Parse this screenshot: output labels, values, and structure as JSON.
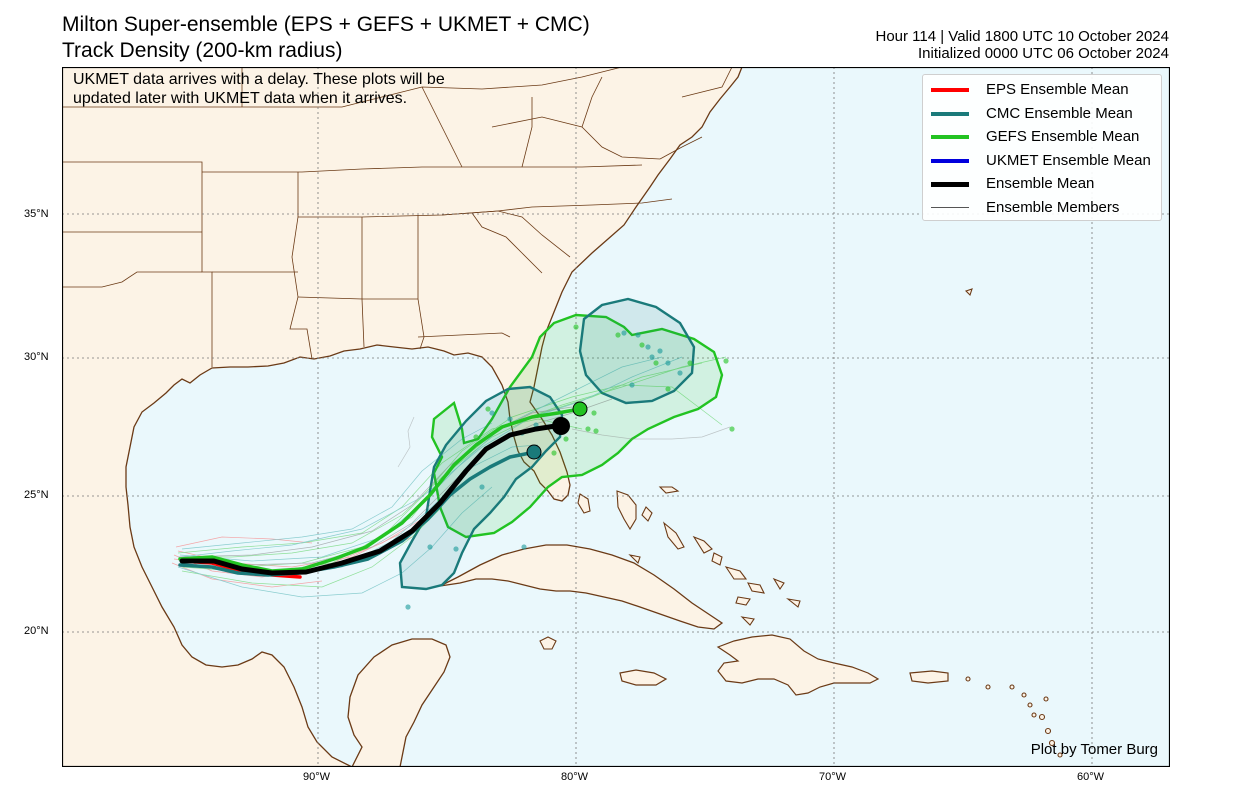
{
  "header": {
    "title_line1": "Milton Super-ensemble (EPS + GEFS + UKMET + CMC)",
    "title_line2": "Track Density (200-km radius)",
    "valid_line": "Hour 114 | Valid 1800 UTC 10 October 2024",
    "init_line": "Initialized 0000 UTC 06 October 2024"
  },
  "note": {
    "line1": "UKMET data arrives with a delay. These plots will be",
    "line2": "updated later with UKMET data when it arrives."
  },
  "legend": [
    {
      "label": "EPS Ensemble Mean",
      "color": "#ff0000",
      "width": 4
    },
    {
      "label": "CMC Ensemble Mean",
      "color": "#1a7a7a",
      "width": 4
    },
    {
      "label": "GEFS Ensemble Mean",
      "color": "#22c322",
      "width": 4
    },
    {
      "label": "UKMET Ensemble Mean",
      "color": "#0000dd",
      "width": 4
    },
    {
      "label": "Ensemble Mean",
      "color": "#000000",
      "width": 5
    },
    {
      "label": "Ensemble Members",
      "color": "#555555",
      "width": 1
    }
  ],
  "axes": {
    "lat_labels": [
      "35°N",
      "30°N",
      "25°N",
      "20°N"
    ],
    "lon_labels": [
      "90°W",
      "80°W",
      "70°W",
      "60°W"
    ]
  },
  "credit": "Plot by Tomer Burg",
  "colors": {
    "land": "#fcf3e6",
    "ocean": "#eaf8fc",
    "coast": "#6b3a16",
    "cmc_contour": "#1a7a7a",
    "gefs_contour": "#22c322"
  }
}
